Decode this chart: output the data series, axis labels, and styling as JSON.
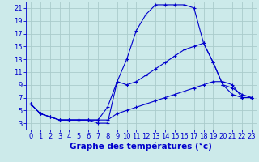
{
  "title": "Graphe des températures (°c)",
  "bg_color": "#cceaea",
  "grid_color": "#aacccc",
  "line_color": "#0000cc",
  "xlim": [
    -0.5,
    23.5
  ],
  "ylim": [
    2,
    22
  ],
  "xticks": [
    0,
    1,
    2,
    3,
    4,
    5,
    6,
    7,
    8,
    9,
    10,
    11,
    12,
    13,
    14,
    15,
    16,
    17,
    18,
    19,
    20,
    21,
    22,
    23
  ],
  "yticks": [
    3,
    5,
    7,
    9,
    11,
    13,
    15,
    17,
    19,
    21
  ],
  "line1_x": [
    0,
    1,
    2,
    3,
    4,
    5,
    6,
    7,
    8,
    9,
    10,
    11,
    12,
    13,
    14,
    15,
    16,
    17,
    18,
    19,
    20,
    21,
    22,
    23
  ],
  "line1_y": [
    6.0,
    4.5,
    4.0,
    3.5,
    3.5,
    3.5,
    3.5,
    3.0,
    3.0,
    9.5,
    13.0,
    17.5,
    20.0,
    21.5,
    21.5,
    21.5,
    21.5,
    21.0,
    15.5,
    12.5,
    9.0,
    7.5,
    7.0,
    7.0
  ],
  "line2_x": [
    0,
    1,
    2,
    3,
    4,
    5,
    6,
    7,
    8,
    9,
    10,
    11,
    12,
    13,
    14,
    15,
    16,
    17,
    18,
    19,
    20,
    21,
    22,
    23
  ],
  "line2_y": [
    6.0,
    4.5,
    4.0,
    3.5,
    3.5,
    3.5,
    3.5,
    3.5,
    5.5,
    9.5,
    9.0,
    9.5,
    10.5,
    11.5,
    12.5,
    13.5,
    14.5,
    15.0,
    15.5,
    12.5,
    9.0,
    8.5,
    7.5,
    7.0
  ],
  "line3_x": [
    0,
    1,
    2,
    3,
    4,
    5,
    6,
    7,
    8,
    9,
    10,
    11,
    12,
    13,
    14,
    15,
    16,
    17,
    18,
    19,
    20,
    21,
    22,
    23
  ],
  "line3_y": [
    6.0,
    4.5,
    4.0,
    3.5,
    3.5,
    3.5,
    3.5,
    3.5,
    3.5,
    4.5,
    5.0,
    5.5,
    6.0,
    6.5,
    7.0,
    7.5,
    8.0,
    8.5,
    9.0,
    9.5,
    9.5,
    9.0,
    7.0,
    7.0
  ],
  "tick_fontsize": 6.0,
  "xlabel_fontsize": 7.5,
  "figsize": [
    3.2,
    2.0
  ],
  "dpi": 100
}
